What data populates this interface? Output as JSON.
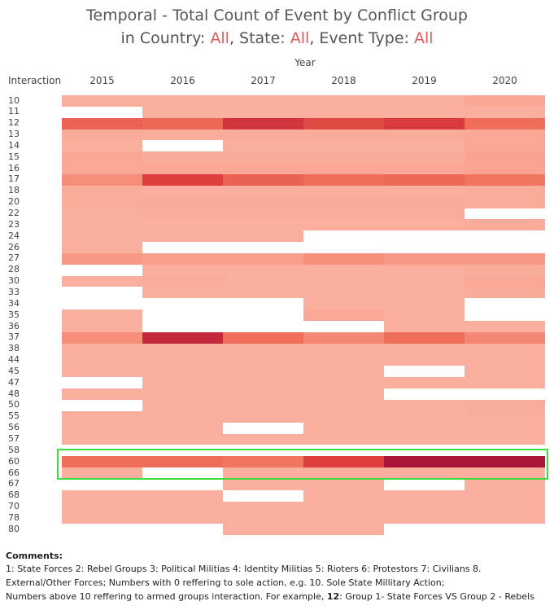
{
  "title": {
    "line1": "Temporal - Total Count of Event by Conflict Group",
    "line2_prefix": "in Country: ",
    "country": "All",
    "state_prefix": ", State: ",
    "state": "All",
    "event_prefix": ", Event Type: ",
    "event": "All"
  },
  "year_axis_title": "Year",
  "row_header": "Interaction",
  "chart_data": {
    "type": "heatmap",
    "title": "Temporal - Total Count of Event by Conflict Group in Country: All, State: All, Event Type: All",
    "xlabel": "Year",
    "ylabel": "Interaction",
    "columns": [
      "2015",
      "2016",
      "2017",
      "2018",
      "2019",
      "2020"
    ],
    "rows": [
      "10",
      "11",
      "12",
      "13",
      "14",
      "15",
      "16",
      "17",
      "18",
      "20",
      "22",
      "23",
      "24",
      "26",
      "27",
      "28",
      "30",
      "33",
      "34",
      "35",
      "36",
      "37",
      "38",
      "44",
      "45",
      "47",
      "48",
      "50",
      "55",
      "56",
      "57",
      "58",
      "60",
      "66",
      "67",
      "68",
      "70",
      "78",
      "80"
    ],
    "intensity_scale": "0 = no events (white), 1 = highest count (dark red)",
    "values": [
      [
        0.2,
        0.2,
        0.2,
        0.2,
        0.2,
        0.25
      ],
      [
        0.0,
        0.2,
        0.2,
        0.2,
        0.2,
        0.2
      ],
      [
        0.65,
        0.62,
        0.85,
        0.75,
        0.82,
        0.6
      ],
      [
        0.22,
        0.22,
        0.22,
        0.22,
        0.22,
        0.25
      ],
      [
        0.2,
        0.0,
        0.2,
        0.2,
        0.2,
        0.25
      ],
      [
        0.25,
        0.22,
        0.22,
        0.22,
        0.22,
        0.28
      ],
      [
        0.25,
        0.25,
        0.25,
        0.25,
        0.25,
        0.28
      ],
      [
        0.4,
        0.8,
        0.65,
        0.6,
        0.62,
        0.55
      ],
      [
        0.22,
        0.2,
        0.2,
        0.2,
        0.2,
        0.22
      ],
      [
        0.22,
        0.22,
        0.22,
        0.22,
        0.22,
        0.22
      ],
      [
        0.2,
        0.22,
        0.22,
        0.22,
        0.22,
        0.0
      ],
      [
        0.2,
        0.2,
        0.2,
        0.2,
        0.2,
        0.22
      ],
      [
        0.2,
        0.2,
        0.2,
        0.0,
        0.0,
        0.0
      ],
      [
        0.2,
        0.0,
        0.0,
        0.0,
        0.0,
        0.0
      ],
      [
        0.35,
        0.3,
        0.3,
        0.4,
        0.35,
        0.35
      ],
      [
        0.0,
        0.2,
        0.2,
        0.2,
        0.2,
        0.22
      ],
      [
        0.2,
        0.22,
        0.2,
        0.2,
        0.2,
        0.25
      ],
      [
        0.0,
        0.2,
        0.2,
        0.2,
        0.2,
        0.22
      ],
      [
        0.0,
        0.0,
        0.0,
        0.2,
        0.2,
        0.0
      ],
      [
        0.2,
        0.0,
        0.0,
        0.25,
        0.2,
        0.0
      ],
      [
        0.2,
        0.0,
        0.0,
        0.0,
        0.2,
        0.2
      ],
      [
        0.4,
        0.9,
        0.6,
        0.45,
        0.6,
        0.45
      ],
      [
        0.2,
        0.2,
        0.2,
        0.2,
        0.2,
        0.2
      ],
      [
        0.2,
        0.2,
        0.2,
        0.2,
        0.2,
        0.2
      ],
      [
        0.2,
        0.2,
        0.2,
        0.2,
        0.0,
        0.2
      ],
      [
        0.0,
        0.2,
        0.2,
        0.2,
        0.2,
        0.2
      ],
      [
        0.2,
        0.2,
        0.2,
        0.2,
        0.0,
        0.0
      ],
      [
        0.0,
        0.2,
        0.2,
        0.2,
        0.2,
        0.22
      ],
      [
        0.2,
        0.2,
        0.2,
        0.2,
        0.2,
        0.2
      ],
      [
        0.2,
        0.2,
        0.0,
        0.2,
        0.2,
        0.2
      ],
      [
        0.2,
        0.2,
        0.2,
        0.2,
        0.2,
        0.2
      ],
      [
        0.0,
        0.0,
        0.0,
        0.0,
        0.0,
        0.0
      ],
      [
        0.6,
        0.6,
        0.55,
        0.8,
        1.0,
        1.0
      ],
      [
        0.2,
        0.0,
        0.2,
        0.2,
        0.2,
        0.2
      ],
      [
        0.0,
        0.0,
        0.2,
        0.2,
        0.0,
        0.2
      ],
      [
        0.2,
        0.2,
        0.0,
        0.2,
        0.2,
        0.2
      ],
      [
        0.2,
        0.2,
        0.2,
        0.2,
        0.2,
        0.2
      ],
      [
        0.2,
        0.2,
        0.2,
        0.2,
        0.2,
        0.2
      ],
      [
        0.0,
        0.0,
        0.2,
        0.2,
        0.0,
        0.0
      ]
    ],
    "highlighted_rows": [
      "58",
      "60",
      "66"
    ]
  },
  "comments": {
    "title": "Comments:",
    "line1": "1: State Forces 2: Rebel Groups 3: Political Militias 4: Identity Militias 5: Rioters 6: Protestors 7: Civilians 8.",
    "line2": "External/Other Forces;  Numbers with 0 reffering to sole action, e.g. 10. Sole State Millitary Action;",
    "line3_pre": "Numbers above 10 reffering to armed groups interaction. For example, ",
    "line3_bold": "12",
    "line3_post": ": Group 1- State Forces VS Group  2 - Rebels"
  }
}
